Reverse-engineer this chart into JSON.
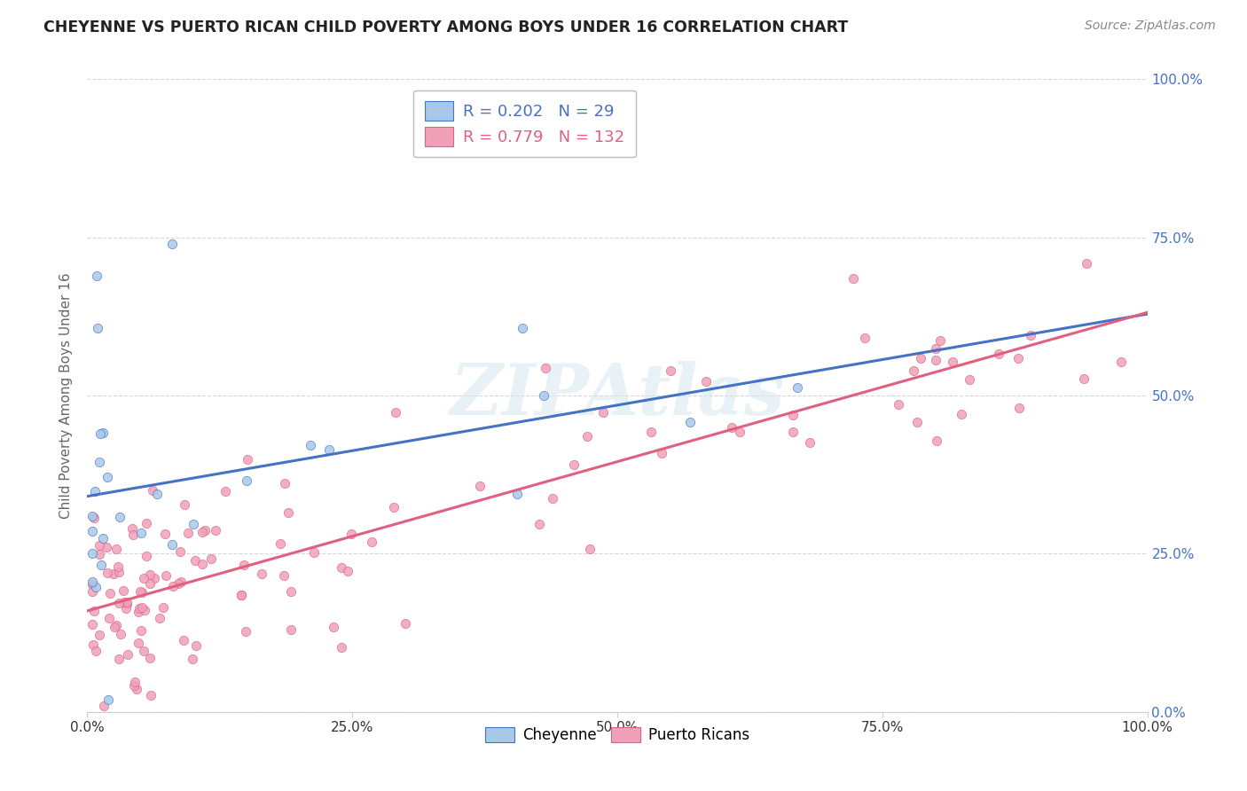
{
  "title": "CHEYENNE VS PUERTO RICAN CHILD POVERTY AMONG BOYS UNDER 16 CORRELATION CHART",
  "source": "Source: ZipAtlas.com",
  "ylabel": "Child Poverty Among Boys Under 16",
  "cheyenne_R": 0.202,
  "cheyenne_N": 29,
  "pr_R": 0.779,
  "pr_N": 132,
  "cheyenne_color": "#a8c8e8",
  "pr_color": "#f0a0b8",
  "cheyenne_line_color": "#4472c4",
  "pr_line_color": "#e06080",
  "background_color": "#ffffff",
  "grid_color": "#cccccc",
  "watermark": "ZIPAtlas",
  "right_tick_color": "#4472c4",
  "title_color": "#222222",
  "source_color": "#888888",
  "ylabel_color": "#666666"
}
